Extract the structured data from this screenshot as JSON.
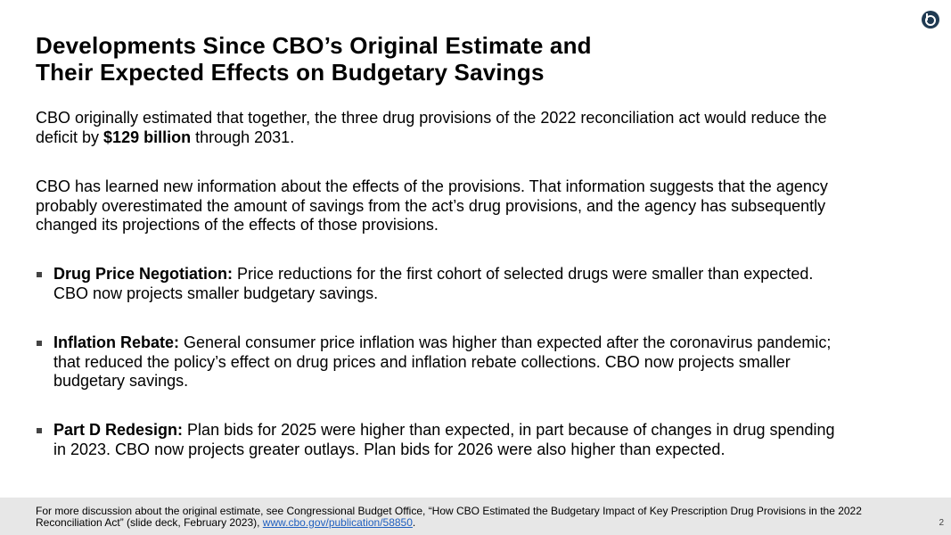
{
  "title": [
    "Developments Since CBO’s Original Estimate and",
    "Their Expected Effects on Budgetary Savings"
  ],
  "paragraphs": [
    {
      "before": "CBO originally estimated that together, the three drug provisions of the 2022 reconciliation act would reduce the deficit by ",
      "bold": "$129 billion",
      "after": " through 2031."
    },
    {
      "before": "CBO has learned new information about the effects of the provisions. That information suggests that the agency probably overestimated the amount of savings from the act’s drug provisions, and the agency has subsequently changed its projections of the effects of those provisions."
    }
  ],
  "bullets": [
    {
      "label": "Drug Price Negotiation:",
      "text": "Price reductions for the first cohort of selected drugs were smaller than expected. CBO now projects smaller budgetary savings."
    },
    {
      "label": "Inflation Rebate:",
      "text": "General consumer price inflation was higher than expected after the coronavirus pandemic; that reduced the policy’s effect on drug prices and inflation rebate collections. CBO now projects smaller budgetary savings."
    },
    {
      "label": "Part D Redesign:",
      "text": "Plan bids for 2025 were higher than expected, in part because of changes in drug spending in 2023. CBO now projects greater outlays. Plan bids for 2026 were also higher than expected."
    }
  ],
  "footnote": {
    "text": "For more discussion about the original estimate, see Congressional Budget Office, “How CBO Estimated the Budgetary Impact of Key Prescription Drug Provisions in the 2022 Reconciliation Act” (slide deck, February 2023), ",
    "link": "www.cbo.gov/publication/58850",
    "end": "."
  },
  "page_number": "2"
}
